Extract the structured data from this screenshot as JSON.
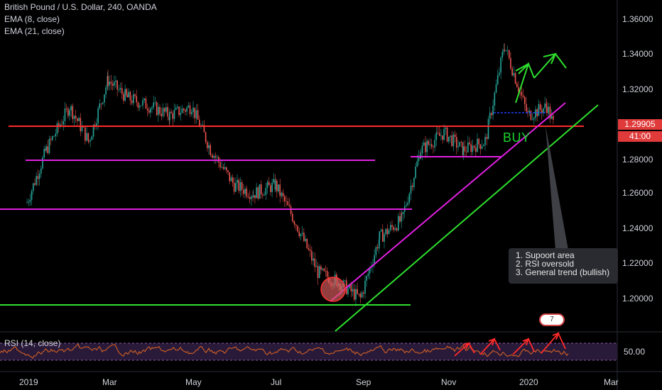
{
  "legend": {
    "symbol": "British Pound / U.S. Dollar, 240, OANDA",
    "ema_fast": "EMA (8, close)",
    "ema_slow": "EMA (21, close)"
  },
  "rsi": {
    "title": "RSI (14, close)",
    "level_label": "50.00"
  },
  "price_axis": {
    "ticks": [
      "1.36000",
      "1.34000",
      "1.32000",
      "1.30000",
      "1.28000",
      "1.26000",
      "1.24000",
      "1.22000",
      "1.20000"
    ],
    "current_price": "1.29905",
    "countdown": "41:00"
  },
  "time_axis": {
    "ticks": [
      "2019",
      "Mar",
      "May",
      "Jul",
      "Sep",
      "Nov",
      "2020",
      "Mar"
    ]
  },
  "annotations": {
    "buy_label": "BUY",
    "note_lines": [
      "1.  Supoort area",
      "2.  RSI oversold",
      "3.  General trend (bullish)"
    ],
    "badge": "7"
  },
  "colors": {
    "up_candle": "#26a69a",
    "down_candle": "#ef5350",
    "horizontal_red": "#ff2a2a",
    "horizontal_magenta": "#e020e0",
    "trend_green": "#2ee02e",
    "rsi_line": "#e0661f",
    "rsi_band": "#2a1a3a"
  },
  "chart_data": {
    "type": "candlestick",
    "ylim": [
      1.18,
      1.365
    ],
    "price_points": [
      [
        "2019-01-01",
        1.255
      ],
      [
        "2019-01-15",
        1.285
      ],
      [
        "2019-02-01",
        1.31
      ],
      [
        "2019-02-15",
        1.29
      ],
      [
        "2019-03-01",
        1.325
      ],
      [
        "2019-03-15",
        1.315
      ],
      [
        "2019-04-01",
        1.31
      ],
      [
        "2019-04-15",
        1.305
      ],
      [
        "2019-05-01",
        1.31
      ],
      [
        "2019-05-15",
        1.285
      ],
      [
        "2019-06-01",
        1.265
      ],
      [
        "2019-06-15",
        1.26
      ],
      [
        "2019-07-01",
        1.265
      ],
      [
        "2019-07-15",
        1.245
      ],
      [
        "2019-08-01",
        1.215
      ],
      [
        "2019-08-15",
        1.21
      ],
      [
        "2019-09-01",
        1.2
      ],
      [
        "2019-09-15",
        1.235
      ],
      [
        "2019-10-01",
        1.245
      ],
      [
        "2019-10-15",
        1.285
      ],
      [
        "2019-11-01",
        1.295
      ],
      [
        "2019-11-15",
        1.285
      ],
      [
        "2019-12-01",
        1.29
      ],
      [
        "2019-12-15",
        1.345
      ],
      [
        "2020-01-01",
        1.305
      ],
      [
        "2020-01-15",
        1.31
      ],
      [
        "2020-01-20",
        1.299
      ]
    ]
  }
}
